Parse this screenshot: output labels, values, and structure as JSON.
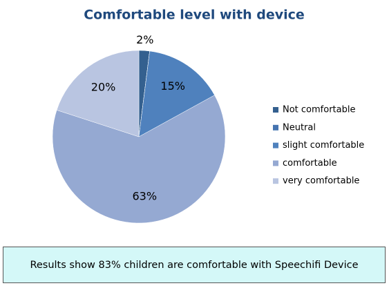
{
  "chart_data": {
    "type": "pie",
    "title": "Comfortable level with device",
    "categories": [
      "Not comfortable",
      "Neutral",
      "slight comfortable",
      "comfortable",
      "very comfortable"
    ],
    "values": [
      2,
      0,
      15,
      63,
      20
    ],
    "value_labels": [
      "2%",
      null,
      "15%",
      "63%",
      "20%"
    ],
    "colors": [
      "#34608f",
      "#4674b0",
      "#4f81bd",
      "#95a9d2",
      "#b9c5e1"
    ],
    "legend": "right",
    "annotation": "Results show 83% children are comfortable with Speechifi Device"
  }
}
